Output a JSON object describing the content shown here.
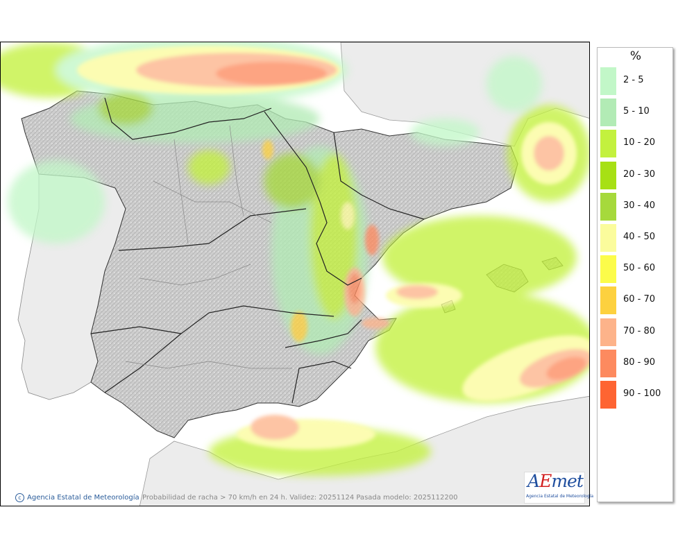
{
  "legend": {
    "title": "%",
    "items": [
      {
        "label": "2 - 5",
        "color": "#c2f7c8"
      },
      {
        "label": "5 - 10",
        "color": "#b2ebb5"
      },
      {
        "label": "10 - 20",
        "color": "#c3f13e"
      },
      {
        "label": "20 - 30",
        "color": "#a7e014"
      },
      {
        "label": "30 - 40",
        "color": "#a6d93c"
      },
      {
        "label": "40 - 50",
        "color": "#fbfc9c"
      },
      {
        "label": "50 - 60",
        "color": "#fcfc4a"
      },
      {
        "label": "60 - 70",
        "color": "#fdd13f"
      },
      {
        "label": "70 - 80",
        "color": "#fdb38a"
      },
      {
        "label": "80 - 90",
        "color": "#fd8a5f"
      },
      {
        "label": "90 - 100",
        "color": "#fe6432"
      }
    ]
  },
  "credit": "Agencia Estatal de Meteorología",
  "caption": "Probabilidad de racha > 70 km/h en 24 h. Validez: 20251124 Pasada modelo: 2025112200",
  "logo": {
    "word_a": "A",
    "word_e": "E",
    "word_rest": "met",
    "subtitle": "Agencia Estatal de Meteorología"
  },
  "colors": {
    "land": "#cfcfcf",
    "sea": "#ffffff",
    "foreign_land": "#ececec",
    "border": "#222222"
  }
}
